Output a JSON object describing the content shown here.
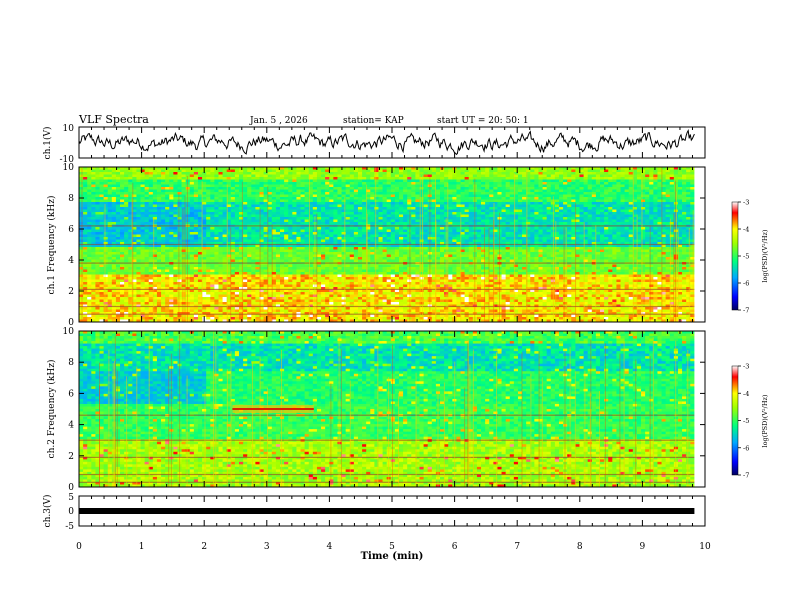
{
  "header": {
    "title": "VLF Spectra",
    "date": "Jan. 5 , 2026",
    "station": "station= KAP",
    "start": "start  UT =   20: 50: 1"
  },
  "chart_data": [
    {
      "type": "line",
      "name": "ch1-waveform",
      "ylabel": "ch.1(V)",
      "ylim": [
        -10,
        10
      ],
      "y_ticks": [
        "10",
        "-10"
      ],
      "x_range_min": [
        0,
        9.83
      ],
      "baseline_v": 0,
      "approx_amplitude_v": 4
    },
    {
      "type": "heatmap",
      "name": "ch1-spectrogram",
      "ylabel": "ch.1 Frequency (kHz)",
      "ylim_khz": [
        0,
        10
      ],
      "x_range_min": [
        0,
        9.83
      ],
      "y_ticks": [
        "10",
        "8",
        "6",
        "4",
        "2",
        "0"
      ],
      "colorbar": {
        "label": "log(PSD)(V²/Hz)",
        "range": [
          -7,
          -3
        ],
        "ticks": [
          "-3",
          "-4",
          "-5",
          "-6",
          "-7"
        ]
      }
    },
    {
      "type": "heatmap",
      "name": "ch2-spectrogram",
      "ylabel": "ch.2 Frequency (kHz)",
      "ylim_khz": [
        0,
        10
      ],
      "x_range_min": [
        0,
        9.83
      ],
      "y_ticks": [
        "10",
        "8",
        "6",
        "4",
        "2",
        "0"
      ],
      "features": [
        {
          "kind": "tone-band",
          "t_start_min": 2.45,
          "t_end_min": 3.75,
          "freq_khz": 5.0
        }
      ],
      "colorbar": {
        "label": "log(PSD)(V²/Hz)",
        "range": [
          -7,
          -3
        ],
        "ticks": [
          "-3",
          "-4",
          "-5",
          "-6",
          "-7"
        ]
      }
    },
    {
      "type": "line",
      "name": "ch3-waveform",
      "ylabel": "ch.3(V)",
      "ylim": [
        -5,
        5
      ],
      "y_ticks": [
        "5",
        "0",
        "-5"
      ],
      "x_range_min": [
        0,
        9.83
      ],
      "constant_value_v": 0
    }
  ],
  "x_axis": {
    "label": "Time (min)",
    "range": [
      0,
      10
    ],
    "ticks": [
      "0",
      "1",
      "2",
      "3",
      "4",
      "5",
      "6",
      "7",
      "8",
      "9",
      "10"
    ]
  }
}
